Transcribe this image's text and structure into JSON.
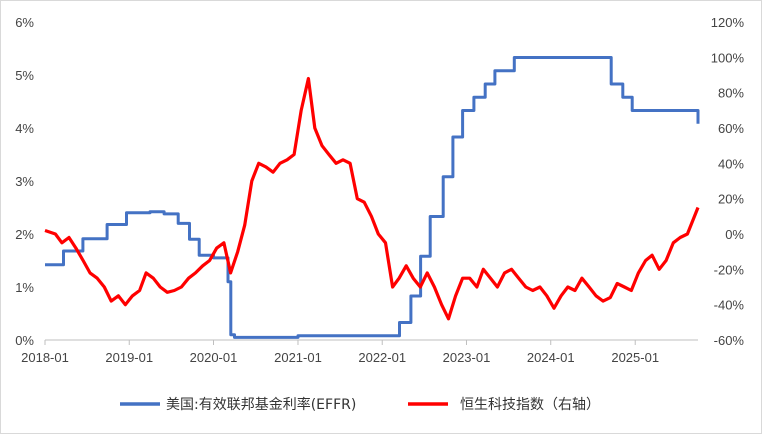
{
  "chart_data": {
    "type": "line",
    "x_range": [
      "2018-01-01",
      "2025-09-30"
    ],
    "x_ticks": [
      "2018-01",
      "2019-01",
      "2020-01",
      "2021-01",
      "2022-01",
      "2023-01",
      "2024-01",
      "2025-01"
    ],
    "y_left": {
      "ticks": [
        "0%",
        "1%",
        "2%",
        "3%",
        "4%",
        "5%",
        "6%"
      ],
      "range": [
        0,
        6
      ]
    },
    "y_right": {
      "ticks": [
        "-60%",
        "-40%",
        "-20%",
        "0%",
        "20%",
        "40%",
        "60%",
        "80%",
        "100%",
        "120%"
      ],
      "range": [
        -60,
        120
      ]
    },
    "grid": false,
    "legend_position": "bottom",
    "series": [
      {
        "name": "美国:有效联邦基金利率(EFFR)",
        "axis": "left",
        "color": "#4472C4",
        "shape": "step",
        "x": [
          "2018-01-01",
          "2018-02-15",
          "2018-03-22",
          "2018-06-14",
          "2018-09-27",
          "2018-12-20",
          "2019-04-01",
          "2019-06-01",
          "2019-08-01",
          "2019-09-19",
          "2019-10-31",
          "2020-01-01",
          "2020-03-04",
          "2020-03-16",
          "2020-04-01",
          "2021-01-01",
          "2021-06-17",
          "2021-08-01",
          "2022-03-17",
          "2022-05-05",
          "2022-06-16",
          "2022-07-28",
          "2022-09-22",
          "2022-11-03",
          "2022-12-15",
          "2023-02-02",
          "2023-03-23",
          "2023-05-04",
          "2023-07-27",
          "2024-09-19",
          "2024-11-08",
          "2024-12-19",
          "2025-09-18",
          "2025-09-30"
        ],
        "y": [
          1.42,
          1.42,
          1.68,
          1.91,
          2.18,
          2.4,
          2.42,
          2.38,
          2.2,
          1.9,
          1.6,
          1.55,
          1.1,
          0.1,
          0.05,
          0.08,
          0.08,
          0.08,
          0.33,
          0.83,
          1.58,
          2.33,
          3.08,
          3.83,
          4.33,
          4.58,
          4.83,
          5.08,
          5.33,
          4.83,
          4.58,
          4.33,
          4.33,
          4.08
        ]
      },
      {
        "name": "恒生科技指数（右轴）",
        "axis": "right",
        "color": "#FF0000",
        "x": [
          "2018-01-01",
          "2018-02-15",
          "2018-03-15",
          "2018-04-15",
          "2018-05-15",
          "2018-06-15",
          "2018-07-15",
          "2018-08-15",
          "2018-09-15",
          "2018-10-15",
          "2018-11-15",
          "2018-12-15",
          "2019-01-15",
          "2019-02-15",
          "2019-03-15",
          "2019-04-15",
          "2019-05-15",
          "2019-06-15",
          "2019-07-15",
          "2019-08-15",
          "2019-09-15",
          "2019-10-15",
          "2019-11-15",
          "2019-12-15",
          "2020-01-15",
          "2020-02-15",
          "2020-03-15",
          "2020-04-15",
          "2020-05-15",
          "2020-06-15",
          "2020-07-15",
          "2020-08-15",
          "2020-09-15",
          "2020-10-15",
          "2020-11-15",
          "2020-12-15",
          "2021-01-15",
          "2021-02-15",
          "2021-03-15",
          "2021-04-15",
          "2021-05-15",
          "2021-06-15",
          "2021-07-15",
          "2021-08-15",
          "2021-09-15",
          "2021-10-15",
          "2021-11-15",
          "2021-12-15",
          "2022-01-15",
          "2022-02-15",
          "2022-03-15",
          "2022-04-15",
          "2022-05-15",
          "2022-06-15",
          "2022-07-15",
          "2022-08-15",
          "2022-09-15",
          "2022-10-15",
          "2022-11-15",
          "2022-12-15",
          "2023-01-15",
          "2023-02-15",
          "2023-03-15",
          "2023-04-15",
          "2023-05-15",
          "2023-06-15",
          "2023-07-15",
          "2023-08-15",
          "2023-09-15",
          "2023-10-15",
          "2023-11-15",
          "2023-12-15",
          "2024-01-15",
          "2024-02-15",
          "2024-03-15",
          "2024-04-15",
          "2024-05-15",
          "2024-06-15",
          "2024-07-15",
          "2024-08-15",
          "2024-09-15",
          "2024-10-15",
          "2024-11-15",
          "2024-12-15",
          "2025-01-15",
          "2025-02-15",
          "2025-03-15",
          "2025-04-15",
          "2025-05-15",
          "2025-06-15",
          "2025-07-15",
          "2025-08-15",
          "2025-09-30"
        ],
        "y": [
          2,
          0,
          -5,
          -2,
          -8,
          -15,
          -22,
          -25,
          -30,
          -38,
          -35,
          -40,
          -35,
          -32,
          -22,
          -25,
          -30,
          -33,
          -32,
          -30,
          -25,
          -22,
          -18,
          -15,
          -8,
          -5,
          -22,
          -10,
          5,
          30,
          40,
          38,
          35,
          40,
          42,
          45,
          70,
          88,
          60,
          50,
          45,
          40,
          42,
          40,
          20,
          18,
          10,
          0,
          -5,
          -30,
          -25,
          -18,
          -25,
          -30,
          -22,
          -30,
          -40,
          -48,
          -35,
          -25,
          -25,
          -30,
          -20,
          -25,
          -30,
          -22,
          -20,
          -25,
          -30,
          -32,
          -30,
          -35,
          -42,
          -35,
          -30,
          -32,
          -25,
          -30,
          -35,
          -38,
          -36,
          -28,
          -30,
          -32,
          -22,
          -15,
          -12,
          -20,
          -15,
          -5,
          -2,
          0,
          15
        ]
      }
    ]
  }
}
